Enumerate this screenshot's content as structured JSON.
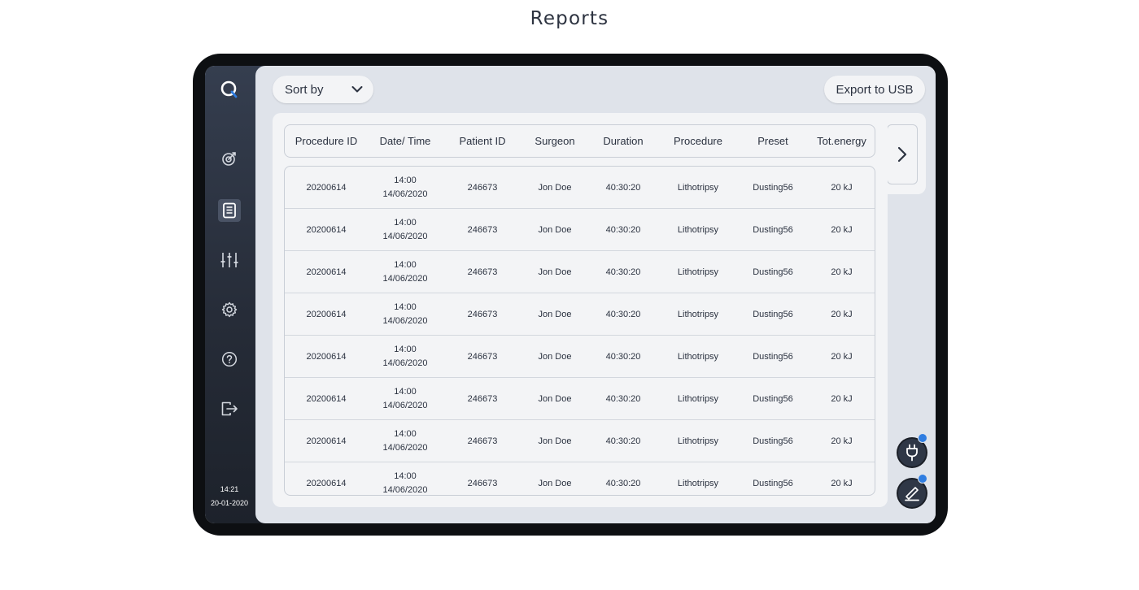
{
  "page": {
    "title": "Reports"
  },
  "sidebar": {
    "time": "14:21",
    "date": "20-01-2020",
    "items": [
      {
        "icon": "target-icon"
      },
      {
        "icon": "report-icon",
        "active": true
      },
      {
        "icon": "sliders-icon"
      },
      {
        "icon": "gear-icon"
      },
      {
        "icon": "help-icon"
      },
      {
        "icon": "logout-icon"
      }
    ]
  },
  "toolbar": {
    "sort_label": "Sort by",
    "export_label": "Export to USB"
  },
  "table": {
    "columns": [
      "Procedure ID",
      "Date/ Time",
      "Patient ID",
      "Surgeon",
      "Duration",
      "Procedure",
      "Preset",
      "Tot.energy"
    ],
    "rows": [
      {
        "procedure_id": "20200614",
        "time": "14:00",
        "date": "14/06/2020",
        "patient_id": "246673",
        "surgeon": "Jon Doe",
        "duration": "40:30:20",
        "procedure": "Lithotripsy",
        "preset": "Dusting56",
        "energy": "20 kJ"
      },
      {
        "procedure_id": "20200614",
        "time": "14:00",
        "date": "14/06/2020",
        "patient_id": "246673",
        "surgeon": "Jon Doe",
        "duration": "40:30:20",
        "procedure": "Lithotripsy",
        "preset": "Dusting56",
        "energy": "20 kJ"
      },
      {
        "procedure_id": "20200614",
        "time": "14:00",
        "date": "14/06/2020",
        "patient_id": "246673",
        "surgeon": "Jon Doe",
        "duration": "40:30:20",
        "procedure": "Lithotripsy",
        "preset": "Dusting56",
        "energy": "20 kJ"
      },
      {
        "procedure_id": "20200614",
        "time": "14:00",
        "date": "14/06/2020",
        "patient_id": "246673",
        "surgeon": "Jon Doe",
        "duration": "40:30:20",
        "procedure": "Lithotripsy",
        "preset": "Dusting56",
        "energy": "20 kJ"
      },
      {
        "procedure_id": "20200614",
        "time": "14:00",
        "date": "14/06/2020",
        "patient_id": "246673",
        "surgeon": "Jon Doe",
        "duration": "40:30:20",
        "procedure": "Lithotripsy",
        "preset": "Dusting56",
        "energy": "20 kJ"
      },
      {
        "procedure_id": "20200614",
        "time": "14:00",
        "date": "14/06/2020",
        "patient_id": "246673",
        "surgeon": "Jon Doe",
        "duration": "40:30:20",
        "procedure": "Lithotripsy",
        "preset": "Dusting56",
        "energy": "20 kJ"
      },
      {
        "procedure_id": "20200614",
        "time": "14:00",
        "date": "14/06/2020",
        "patient_id": "246673",
        "surgeon": "Jon Doe",
        "duration": "40:30:20",
        "procedure": "Lithotripsy",
        "preset": "Dusting56",
        "energy": "20 kJ"
      },
      {
        "procedure_id": "20200614",
        "time": "14:00",
        "date": "14/06/2020",
        "patient_id": "246673",
        "surgeon": "Jon Doe",
        "duration": "40:30:20",
        "procedure": "Lithotripsy",
        "preset": "Dusting56",
        "energy": "20 kJ"
      }
    ]
  },
  "status_buttons": [
    {
      "icon": "power-plug-icon",
      "indicator_color": "#2f7de1"
    },
    {
      "icon": "pen-icon",
      "indicator_color": "#2f7de1"
    }
  ],
  "colors": {
    "accent": "#2f7de1",
    "sidebar": "#2a313e",
    "panel": "#dfe3ea",
    "card": "#f3f4f6"
  }
}
